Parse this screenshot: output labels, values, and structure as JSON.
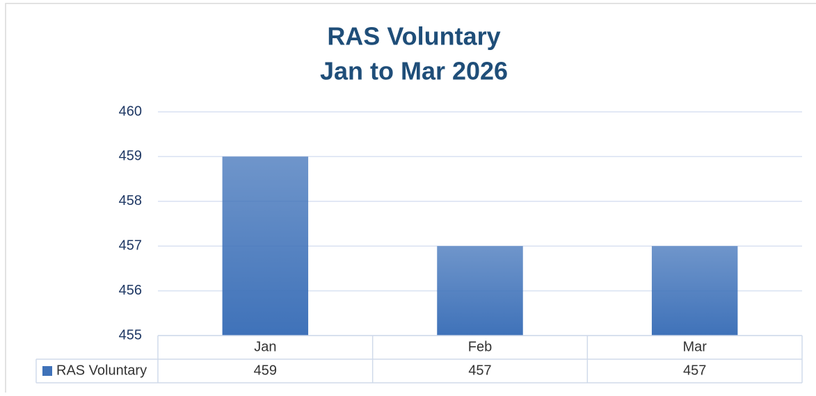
{
  "chart_data": {
    "type": "bar",
    "title": "RAS Voluntary",
    "subtitle": "Jan to Mar 2026",
    "categories": [
      "Jan",
      "Feb",
      "Mar"
    ],
    "series": [
      {
        "name": "RAS Voluntary",
        "color": "#3f72b9",
        "values": [
          459,
          457,
          457
        ]
      }
    ],
    "ylim": [
      455,
      460
    ],
    "yticks": [
      455,
      456,
      457,
      458,
      459,
      460
    ],
    "grid": true,
    "legend": "data-table"
  }
}
